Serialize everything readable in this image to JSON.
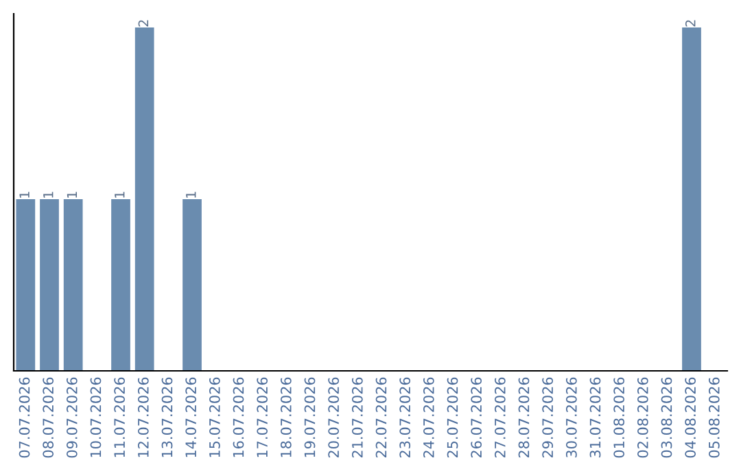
{
  "chart_data": {
    "type": "bar",
    "categories": [
      "07.07.2026",
      "08.07.2026",
      "09.07.2026",
      "10.07.2026",
      "11.07.2026",
      "12.07.2026",
      "13.07.2026",
      "14.07.2026",
      "15.07.2026",
      "16.07.2026",
      "17.07.2026",
      "18.07.2026",
      "19.07.2026",
      "20.07.2026",
      "21.07.2026",
      "22.07.2026",
      "23.07.2026",
      "24.07.2026",
      "25.07.2026",
      "26.07.2026",
      "27.07.2026",
      "28.07.2026",
      "29.07.2026",
      "30.07.2026",
      "31.07.2026",
      "01.08.2026",
      "02.08.2026",
      "03.08.2026",
      "04.08.2026",
      "05.08.2026"
    ],
    "values": [
      1,
      1,
      1,
      0,
      1,
      2,
      0,
      1,
      0,
      0,
      0,
      0,
      0,
      0,
      0,
      0,
      0,
      0,
      0,
      0,
      0,
      0,
      0,
      0,
      0,
      0,
      0,
      0,
      2,
      0
    ],
    "value_labels": [
      "1",
      "1",
      "1",
      null,
      "1",
      "2",
      null,
      "1",
      null,
      null,
      null,
      null,
      null,
      null,
      null,
      null,
      null,
      null,
      null,
      null,
      null,
      null,
      null,
      null,
      null,
      null,
      null,
      null,
      "2",
      null
    ],
    "color": "#6a8caf",
    "ylim": [
      0,
      2.08
    ],
    "tick_labels": "x",
    "grid": false,
    "legend": false
  }
}
